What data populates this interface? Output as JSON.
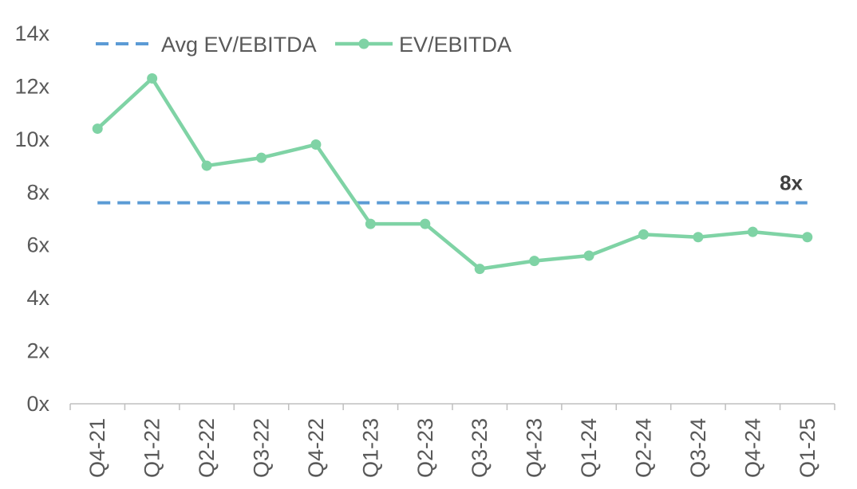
{
  "chart_data": {
    "type": "line",
    "title": "",
    "xlabel": "",
    "ylabel": "",
    "categories": [
      "Q4-21",
      "Q1-22",
      "Q2-22",
      "Q3-22",
      "Q4-22",
      "Q1-23",
      "Q2-23",
      "Q3-23",
      "Q4-23",
      "Q1-24",
      "Q2-24",
      "Q3-24",
      "Q4-24",
      "Q1-25"
    ],
    "yticks": [
      "0x",
      "2x",
      "4x",
      "6x",
      "8x",
      "10x",
      "12x",
      "14x"
    ],
    "ylim": [
      0,
      14
    ],
    "grid": false,
    "legend_position": "top",
    "series": [
      {
        "name": "Avg EV/EBITDA",
        "style": "dashed",
        "color": "#5B9BD5",
        "values": [
          7.6,
          7.6,
          7.6,
          7.6,
          7.6,
          7.6,
          7.6,
          7.6,
          7.6,
          7.6,
          7.6,
          7.6,
          7.6,
          7.6
        ]
      },
      {
        "name": "EV/EBITDA",
        "style": "solid-markers",
        "color": "#7FD3A5",
        "values": [
          10.4,
          12.3,
          9.0,
          9.3,
          9.8,
          6.8,
          6.8,
          5.1,
          5.4,
          5.6,
          6.4,
          6.3,
          6.5,
          6.3
        ]
      }
    ],
    "annotations": [
      {
        "text": "8x",
        "attached_to": "Avg EV/EBITDA",
        "position": "right-end-above"
      }
    ]
  }
}
